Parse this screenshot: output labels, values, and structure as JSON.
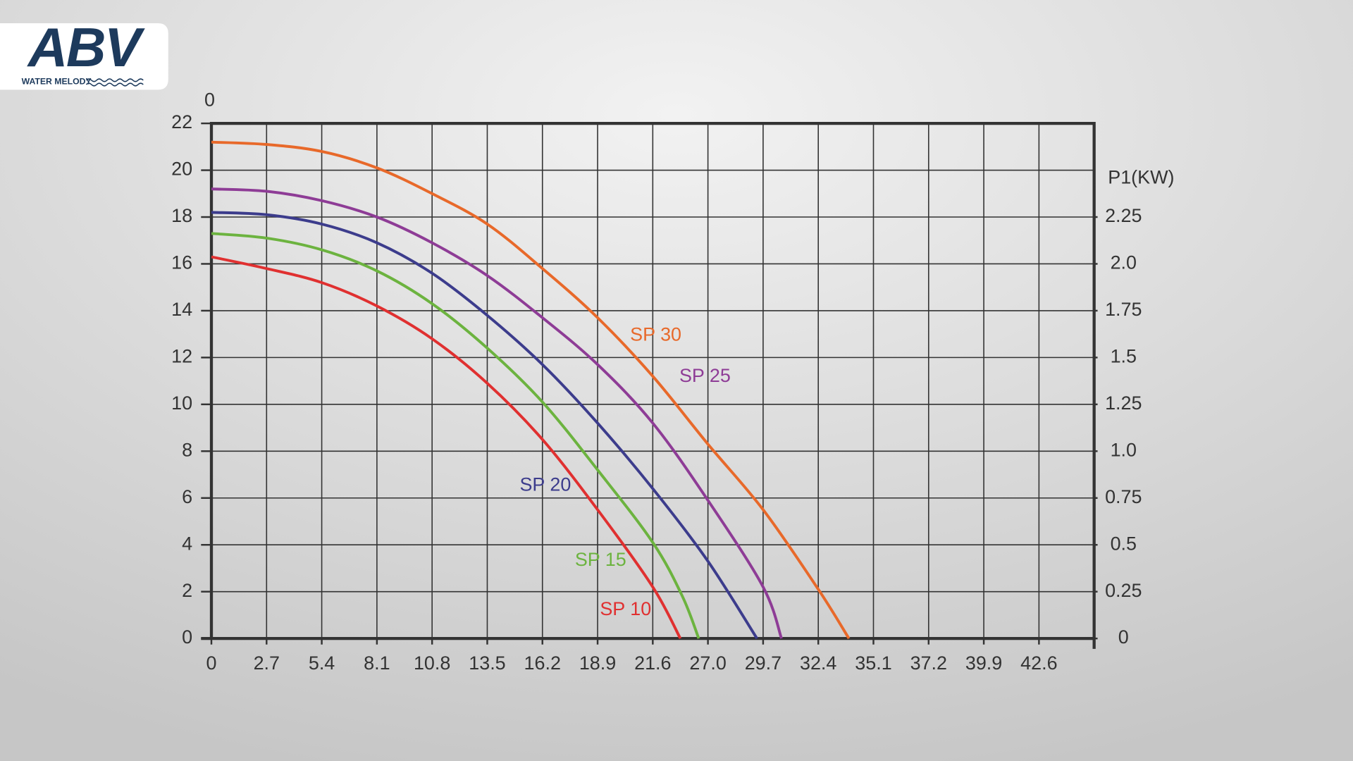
{
  "logo": {
    "mark": "ABV",
    "tagline": "WATER MELODY"
  },
  "chart_data": {
    "type": "line",
    "y_label": "0",
    "y2_label": "P1(KW)",
    "xlim": [
      0,
      45.3
    ],
    "xticks": [
      0,
      2.7,
      5.4,
      8.1,
      10.8,
      13.5,
      16.2,
      18.9,
      21.6,
      {
        "value": 27,
        "label": "27.0"
      },
      29.7,
      32.4,
      35.1,
      37.2,
      39.9,
      42.6
    ],
    "ylim": [
      0,
      22
    ],
    "yticks": [
      0,
      2,
      4,
      6,
      8,
      10,
      12,
      14,
      16,
      18,
      20,
      22
    ],
    "y2lim": [
      0,
      2.75
    ],
    "y2ticks": [
      0,
      0.25,
      0.5,
      0.75,
      {
        "value": 1,
        "label": "1.0"
      },
      1.25,
      1.5,
      1.75,
      {
        "value": 2,
        "label": "2.0"
      },
      2.25
    ],
    "grid": true,
    "series": [
      {
        "name": "SP 30",
        "color": "#e8692a",
        "x": [
          0,
          2.7,
          5.4,
          8.1,
          10.8,
          13.5,
          16.2,
          18.9,
          21.6,
          27,
          29.7,
          32.4,
          33.9
        ],
        "values": [
          21.2,
          21.1,
          20.8,
          20.1,
          19.0,
          17.7,
          15.8,
          13.7,
          11.2,
          8.3,
          5.5,
          2.1,
          0
        ]
      },
      {
        "name": "SP 25",
        "color": "#8e3c96",
        "x": [
          0,
          2.7,
          5.4,
          8.1,
          10.8,
          13.5,
          16.2,
          18.9,
          21.6,
          27,
          29.7,
          30.6
        ],
        "values": [
          19.2,
          19.1,
          18.7,
          18.0,
          16.9,
          15.5,
          13.7,
          11.7,
          9.2,
          5.9,
          2.2,
          0
        ]
      },
      {
        "name": "SP 20",
        "color": "#3c3c8c",
        "x": [
          0,
          2.7,
          5.4,
          8.1,
          10.8,
          13.5,
          16.2,
          18.9,
          21.6,
          27,
          29.4
        ],
        "values": [
          18.2,
          18.1,
          17.7,
          16.9,
          15.6,
          13.8,
          11.7,
          9.2,
          6.4,
          3.3,
          0
        ]
      },
      {
        "name": "SP 15",
        "color": "#6cb33f",
        "x": [
          0,
          2.7,
          5.4,
          8.1,
          10.8,
          13.5,
          16.2,
          18.9,
          21.6,
          24.5,
          26.1
        ],
        "values": [
          17.3,
          17.1,
          16.6,
          15.7,
          14.3,
          12.4,
          10.1,
          7.2,
          4.1,
          1.8,
          0
        ]
      },
      {
        "name": "SP 10",
        "color": "#e03030",
        "x": [
          0,
          2.7,
          5.4,
          8.1,
          10.8,
          13.5,
          16.2,
          18.9,
          21.6,
          24.3
        ],
        "values": [
          16.3,
          15.8,
          15.2,
          14.2,
          12.8,
          10.9,
          8.5,
          5.5,
          2.2,
          0
        ]
      }
    ]
  }
}
